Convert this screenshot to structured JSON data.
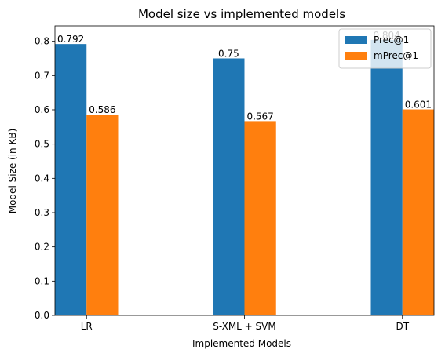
{
  "chart_data": {
    "type": "bar",
    "title": "Model size vs implemented models",
    "xlabel": "Implemented Models",
    "ylabel": "Model Size (in KB)",
    "categories": [
      "LR",
      "S-XML + SVM",
      "DT"
    ],
    "series": [
      {
        "name": "Prec@1",
        "values": [
          0.792,
          0.75,
          0.804
        ],
        "value_labels": [
          "0.792",
          "0.75",
          "0.804"
        ],
        "color": "#1f77b4"
      },
      {
        "name": "mPrec@1",
        "values": [
          0.586,
          0.567,
          0.601
        ],
        "value_labels": [
          "0.586",
          "0.567",
          "0.601"
        ],
        "color": "#ff7f0e"
      }
    ],
    "ylim": [
      0,
      0.845
    ],
    "yticks": [
      0.0,
      0.1,
      0.2,
      0.3,
      0.4,
      0.5,
      0.6,
      0.7,
      0.8
    ],
    "ytick_labels": [
      "0.0",
      "0.1",
      "0.2",
      "0.3",
      "0.4",
      "0.5",
      "0.6",
      "0.7",
      "0.8"
    ],
    "grid": false,
    "legend_position": "top-right"
  }
}
